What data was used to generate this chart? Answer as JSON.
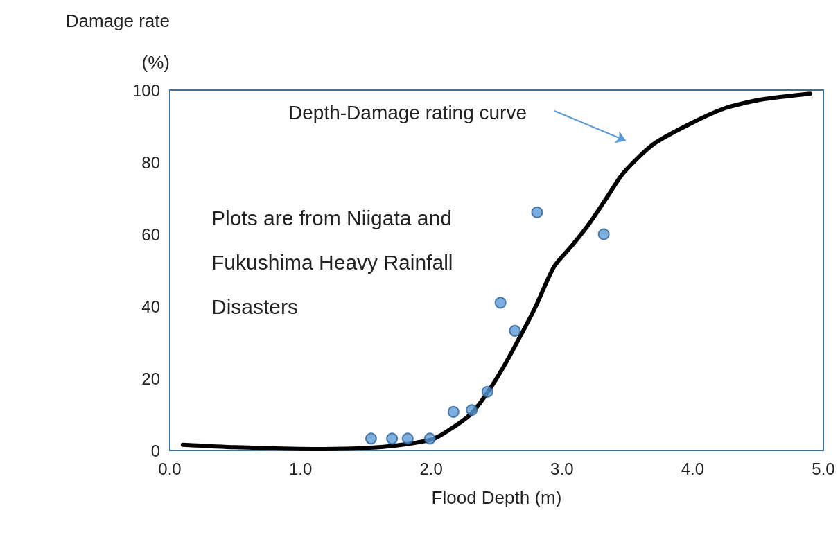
{
  "chart_data": {
    "type": "scatter",
    "xlabel": "Flood Depth (m)",
    "ylabel": "Damage rate (%)",
    "series": [
      {
        "color": "#5b9bd5",
        "x": [
          1.54,
          1.7,
          1.82,
          1.99,
          2.17,
          2.31,
          2.43,
          2.53,
          2.64,
          2.81,
          3.32
        ],
        "values": [
          3.3,
          3.3,
          3.3,
          3.3,
          10.7,
          11.2,
          16.3,
          41,
          33.2,
          66.1,
          60
        ]
      },
      {
        "type": "line",
        "color": "#000000",
        "x": [
          0.1,
          0.5,
          1.1,
          1.6,
          2.0,
          2.15,
          2.3,
          2.41,
          2.55,
          2.68,
          2.8,
          2.94,
          3.08,
          3.21,
          3.34,
          3.47,
          3.7,
          4.0,
          4.25,
          4.53,
          4.9
        ],
        "values": [
          1.6,
          0.9,
          0.4,
          0.9,
          3,
          6,
          10,
          15,
          23,
          31.6,
          40,
          51,
          57,
          63,
          70,
          77,
          85,
          91,
          95,
          97.4,
          99
        ]
      }
    ],
    "annotations": [
      "Depth-Damage rating curve",
      "Plots are from Niigata and Fukushima Heavy Rainfall Disasters"
    ],
    "xlim": [
      0,
      5
    ],
    "xticks": [
      {
        "value": 0,
        "label": "0.0"
      },
      {
        "value": 1,
        "label": "1.0"
      },
      {
        "value": 2,
        "label": "2.0"
      },
      {
        "value": 3,
        "label": "3.0"
      },
      {
        "value": 4,
        "label": "4.0"
      },
      {
        "value": 5,
        "label": "5.0"
      }
    ],
    "ylim": [
      0,
      100
    ],
    "yticks": [
      0,
      20,
      40,
      60,
      80,
      100
    ],
    "grid": false,
    "line_style": "solid"
  }
}
